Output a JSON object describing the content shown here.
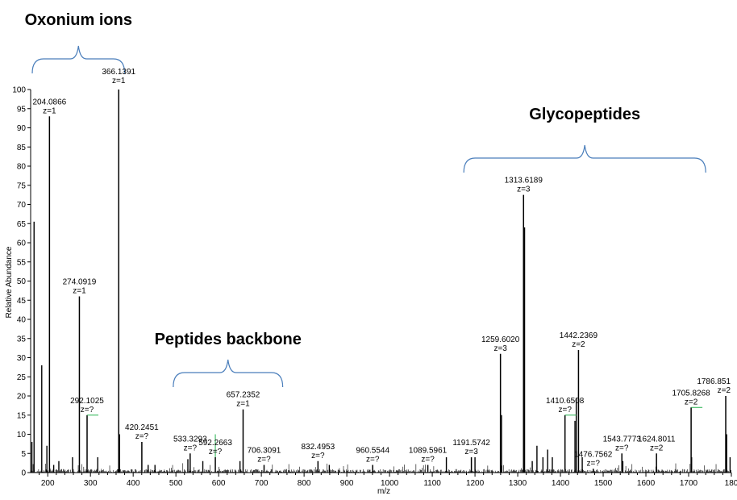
{
  "chart_data": {
    "type": "bar",
    "title": "",
    "xlabel": "m/z",
    "ylabel": "Relative Abundance",
    "xlim": [
      160,
      1800
    ],
    "ylim": [
      0,
      100
    ],
    "x_ticks": [
      "200",
      "300",
      "400",
      "500",
      "600",
      "700",
      "800",
      "900",
      "1000",
      "1100",
      "1200",
      "1300",
      "1400",
      "1500",
      "1600",
      "1700",
      "180"
    ],
    "y_ticks": [
      "0",
      "5",
      "10",
      "15",
      "20",
      "25",
      "30",
      "35",
      "40",
      "45",
      "50",
      "55",
      "60",
      "65",
      "70",
      "75",
      "80",
      "85",
      "90",
      "95",
      "100"
    ],
    "labeled_peaks": [
      {
        "mz": 204.0866,
        "intensity": 93,
        "label": "204.0866",
        "charge": "z=1"
      },
      {
        "mz": 366.1391,
        "intensity": 100,
        "label": "366.1391",
        "charge": "z=1"
      },
      {
        "mz": 274.0919,
        "intensity": 46,
        "label": "274.0919",
        "charge": "z=1"
      },
      {
        "mz": 292.1025,
        "intensity": 15,
        "label": "292.1025",
        "charge": "z=?"
      },
      {
        "mz": 420.2451,
        "intensity": 8,
        "label": "420.2451",
        "charge": "z=?"
      },
      {
        "mz": 533.3293,
        "intensity": 5,
        "label": "533.3293",
        "charge": "z=?"
      },
      {
        "mz": 592.2663,
        "intensity": 4,
        "label": "592.2663",
        "charge": "z=?"
      },
      {
        "mz": 657.2352,
        "intensity": 16.5,
        "label": "657.2352",
        "charge": "z=1"
      },
      {
        "mz": 706.3091,
        "intensity": 2,
        "label": "706.3091",
        "charge": "z=?"
      },
      {
        "mz": 832.4953,
        "intensity": 3,
        "label": "832.4953",
        "charge": "z=?"
      },
      {
        "mz": 960.5544,
        "intensity": 2,
        "label": "960.5544",
        "charge": "z=?"
      },
      {
        "mz": 1089.5961,
        "intensity": 2,
        "label": "1089.5961",
        "charge": "z=?"
      },
      {
        "mz": 1191.5742,
        "intensity": 4,
        "label": "1191.5742",
        "charge": "z=3"
      },
      {
        "mz": 1259.602,
        "intensity": 31,
        "label": "1259.6020",
        "charge": "z=3"
      },
      {
        "mz": 1313.6189,
        "intensity": 72.5,
        "label": "1313.6189",
        "charge": "z=3"
      },
      {
        "mz": 1410.6508,
        "intensity": 15,
        "label": "1410.6508",
        "charge": "z=?"
      },
      {
        "mz": 1442.2369,
        "intensity": 32,
        "label": "1442.2369",
        "charge": "z=2"
      },
      {
        "mz": 1476.7562,
        "intensity": 1,
        "label": "1476.7562",
        "charge": "z=?"
      },
      {
        "mz": 1543.7773,
        "intensity": 5,
        "label": "1543.7773",
        "charge": "z=?"
      },
      {
        "mz": 1624.8011,
        "intensity": 5,
        "label": "1624.8011",
        "charge": "z=2"
      },
      {
        "mz": 1705.8268,
        "intensity": 17,
        "label": "1705.8268",
        "charge": "z=2"
      },
      {
        "mz": 1786.851,
        "intensity": 20,
        "label": "1786.851",
        "charge": "z=2"
      }
    ],
    "unlabeled_peaks": [
      {
        "mz": 163,
        "intensity": 8
      },
      {
        "mz": 168,
        "intensity": 65.5
      },
      {
        "mz": 186,
        "intensity": 28
      },
      {
        "mz": 198,
        "intensity": 7
      },
      {
        "mz": 214,
        "intensity": 2
      },
      {
        "mz": 226,
        "intensity": 3
      },
      {
        "mz": 258,
        "intensity": 4
      },
      {
        "mz": 317,
        "intensity": 4
      },
      {
        "mz": 368,
        "intensity": 10
      },
      {
        "mz": 435,
        "intensity": 2
      },
      {
        "mz": 451,
        "intensity": 2
      },
      {
        "mz": 528,
        "intensity": 3.5
      },
      {
        "mz": 563,
        "intensity": 3
      },
      {
        "mz": 650,
        "intensity": 3
      },
      {
        "mz": 859,
        "intensity": 2
      },
      {
        "mz": 1133,
        "intensity": 4
      },
      {
        "mz": 1200,
        "intensity": 4
      },
      {
        "mz": 1262,
        "intensity": 15
      },
      {
        "mz": 1316,
        "intensity": 64
      },
      {
        "mz": 1334,
        "intensity": 3
      },
      {
        "mz": 1345,
        "intensity": 7
      },
      {
        "mz": 1359,
        "intensity": 4
      },
      {
        "mz": 1370,
        "intensity": 6
      },
      {
        "mz": 1381,
        "intensity": 4
      },
      {
        "mz": 1434,
        "intensity": 13.5
      },
      {
        "mz": 1437,
        "intensity": 19.5
      },
      {
        "mz": 1451,
        "intensity": 4
      },
      {
        "mz": 1546,
        "intensity": 3
      },
      {
        "mz": 1707,
        "intensity": 4
      },
      {
        "mz": 1789,
        "intensity": 10
      },
      {
        "mz": 1797,
        "intensity": 4
      }
    ],
    "annotations": [
      {
        "text": "Oxonium ions",
        "mz_from": 160,
        "mz_to": 380
      },
      {
        "text": "Peptides backbone",
        "mz_from": 490,
        "mz_to": 750
      },
      {
        "text": "Glycopeptides",
        "mz_from": 1170,
        "mz_to": 1740
      }
    ],
    "colors": {
      "peak": "#000000",
      "bracket": "#4a7ebb",
      "axis": "#000000",
      "isotope_mark": "#22b14c"
    }
  }
}
